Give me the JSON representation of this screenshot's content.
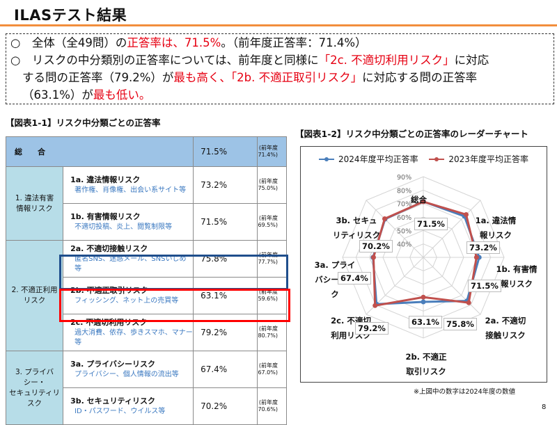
{
  "header": {
    "title": "ILASテスト結果"
  },
  "summary": {
    "line1": [
      {
        "text": "○　全体（全49問）の",
        "red": false
      },
      {
        "text": "正答率は、71.5%",
        "red": true
      },
      {
        "text": "。（前年度正答率：71.4%）",
        "red": false
      }
    ],
    "line2": [
      {
        "text": "○　リスクの中分類別の正答率については、前年度と同様に",
        "red": false
      },
      {
        "text": "「2c. 不適切利用リスク」",
        "red": true
      },
      {
        "text": "に対応",
        "red": false
      }
    ],
    "line3": [
      {
        "text": "する問の正答率（79.2%）が",
        "red": false
      },
      {
        "text": "最も高く、「2b. 不適正取引リスク」",
        "red": true
      },
      {
        "text": "に対応する問の正答率",
        "red": false
      }
    ],
    "line4": [
      {
        "text": "（63.1%）が",
        "red": false
      },
      {
        "text": "最も低い。",
        "red": true
      }
    ]
  },
  "table": {
    "title": "【図表1-1】リスク中分類ごとの正答率",
    "overall": {
      "label": "総　　合",
      "rate": "71.5%",
      "prev": "(前年度\n71.4%)"
    },
    "categories": [
      {
        "label": "1. 違法有害\n情報リスク",
        "items": [
          {
            "name": "1a. 違法情報リスク",
            "examples": "著作権、肖像権、出会い系サイト等",
            "rate": "73.2%",
            "prev": "(前年度\n75.0%)"
          },
          {
            "name": "1b. 有害情報リスク",
            "examples": "不適切投稿、炎上、閲覧制限等",
            "rate": "71.5%",
            "prev": "(前年度\n69.5%)"
          }
        ]
      },
      {
        "label": "2. 不適正利用\nリスク",
        "items": [
          {
            "name": "2a. 不適切接触リスク",
            "examples": "匿名SNS、迷惑メール、SNSいじめ等",
            "rate": "75.8%",
            "prev": "(前年度\n77.7%)"
          },
          {
            "name": "2b. 不適正取引リスク",
            "examples": "フィッシング、ネット上の売買等",
            "rate": "63.1%",
            "prev": "(前年度\n59.6%)"
          },
          {
            "name": "2c. 不適切利用リスク",
            "examples": "過大消費、依存、歩きスマホ、マナー等",
            "rate": "79.2%",
            "prev": "(前年度\n80.7%)"
          }
        ]
      },
      {
        "label": "3. プライバ\nシー・\nセキュリティリ\nスク",
        "items": [
          {
            "name": "3a. プライバシーリスク",
            "examples": "プライバシー、個人情報の流出等",
            "rate": "67.4%",
            "prev": "(前年度\n67.0%)"
          },
          {
            "name": "3b. セキュリティリスク",
            "examples": "ID・パスワード、ウイルス等",
            "rate": "70.2%",
            "prev": "(前年度\n70.6%)"
          }
        ]
      }
    ]
  },
  "radar": {
    "title": "【図表1-2】リスク中分類ごとの正答率のレーダーチャート",
    "legend": [
      "2024年度平均正答率",
      "2023年度平均正答率"
    ],
    "note": "※上図中の数字は2024年度の数値"
  },
  "chart_data": {
    "type": "radar",
    "title": "リスク中分類ごとの正答率のレーダーチャート",
    "categories": [
      "総合",
      "1a. 違法情報リスク",
      "1b. 有害情報リスク",
      "2a. 不適切接触リスク",
      "2b. 不適正取引リスク",
      "2c. 不適切利用リスク",
      "3a. プライバシーリスク",
      "3b. セキュリティリスク"
    ],
    "series": [
      {
        "name": "2024年度平均正答率",
        "color": "#4a7ebb",
        "values": [
          71.5,
          73.2,
          71.5,
          75.8,
          63.1,
          79.2,
          67.4,
          70.2
        ]
      },
      {
        "name": "2023年度平均正答率",
        "color": "#c0504d",
        "values": [
          71.4,
          75.0,
          69.5,
          77.7,
          59.6,
          80.7,
          67.0,
          70.6
        ]
      }
    ],
    "rlim": [
      30,
      90
    ],
    "ticks": [
      "40%",
      "50%",
      "60%",
      "70%",
      "80%",
      "90%"
    ],
    "data_labels": [
      "71.5%",
      "73.2%",
      "71.5%",
      "75.8%",
      "63.1%",
      "79.2%",
      "67.4%",
      "70.2%"
    ],
    "legend_position": "top"
  },
  "page": {
    "number": "8"
  }
}
